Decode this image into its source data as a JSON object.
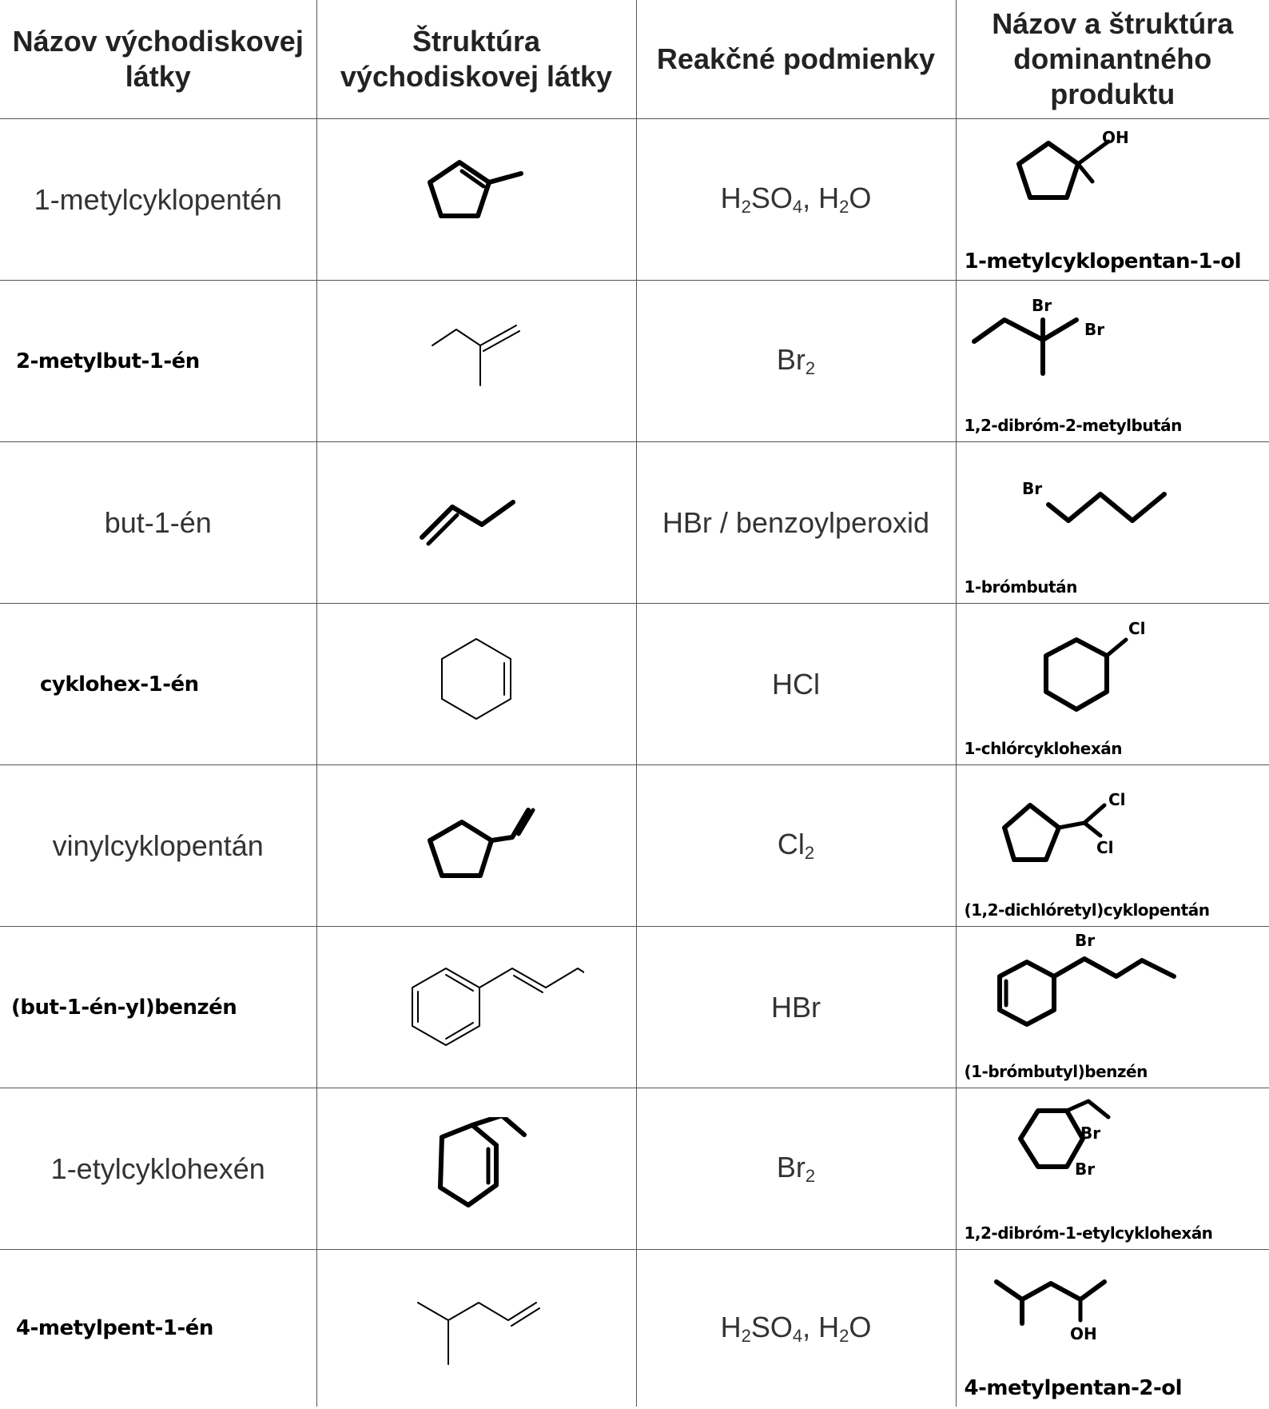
{
  "headers": [
    "Názov východiskovej látky",
    "Štruktúra východiskovej látky",
    "Reakčné podmienky",
    "Názov a štruktúra dominantného produktu"
  ],
  "rows": [
    {
      "reactant_name": "1-metylcyklopentén",
      "conditions": "H₂SO₄, H₂O",
      "product_name": "1-metylcyklopentan-1-ol",
      "product_labels": [
        "OH"
      ]
    },
    {
      "reactant_name": "2-metylbut-1-én",
      "conditions": "Br₂",
      "product_name": "1,2-dibróm-2-metylbután",
      "product_labels": [
        "Br",
        "Br"
      ]
    },
    {
      "reactant_name": "but-1-én",
      "conditions": "HBr / benzoylperoxid",
      "product_name": "1-brómbután",
      "product_labels": [
        "Br"
      ]
    },
    {
      "reactant_name": "cyklohex-1-én",
      "conditions": "HCl",
      "product_name": "1-chlórcyklohexán",
      "product_labels": [
        "Cl"
      ]
    },
    {
      "reactant_name": "vinylcyklopentán",
      "conditions": "Cl₂",
      "product_name": "(1,2-dichlóretyl)cyklopentán",
      "product_labels": [
        "Cl",
        "Cl"
      ]
    },
    {
      "reactant_name": "(but-1-én-yl)benzén",
      "conditions": "HBr",
      "product_name": "(1-brómbutyl)benzén",
      "product_labels": [
        "Br"
      ]
    },
    {
      "reactant_name": "1-etylcyklohexén",
      "conditions": "Br₂",
      "product_name": "1,2-dibróm-1-etylcyklohexán",
      "product_labels": [
        "Br",
        "Br"
      ]
    },
    {
      "reactant_name": "4-metylpent-1-én",
      "conditions": "H₂SO₄, H₂O",
      "product_name": "4-metylpentan-2-ol",
      "product_labels": [
        "OH"
      ]
    }
  ]
}
